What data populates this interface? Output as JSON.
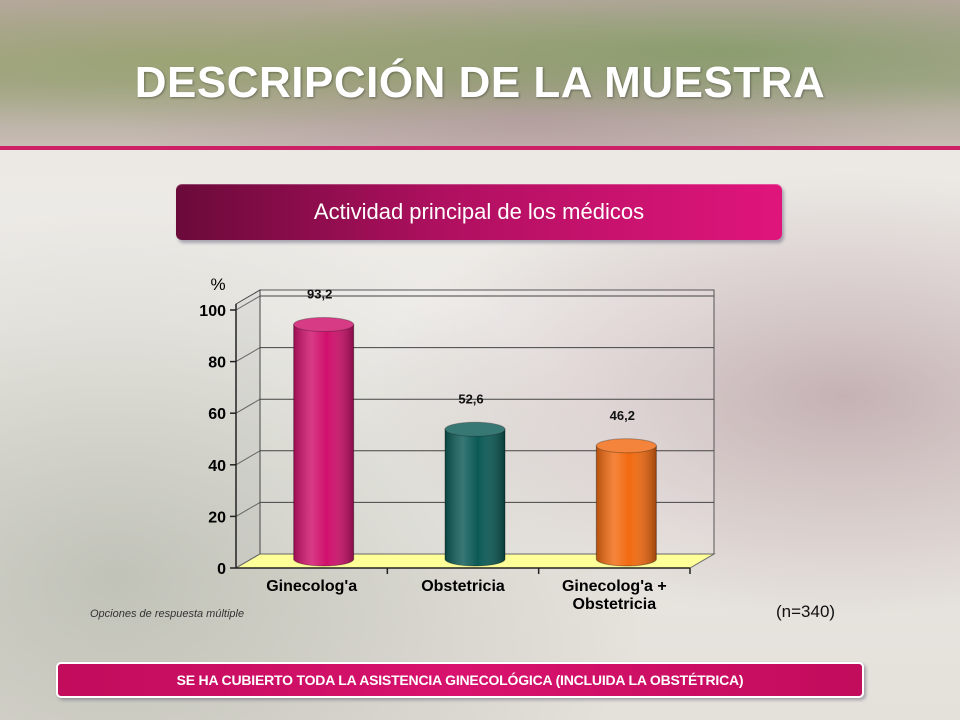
{
  "slide": {
    "title": "DESCRIPCIÓN DE LA MUESTRA",
    "banner": "Actividad principal de los médicos",
    "note": "Opciones de respuesta múltiple",
    "sample_size": "(n=340)",
    "footer": "SE HA CUBIERTO TODA LA ASISTENCIA GINECOLÓGICA (INCLUIDA LA OBSTÉTRICA)",
    "colors": {
      "accent": "#cc1f66",
      "banner_dark": "#6b0a3a",
      "banner_light": "#e0157c",
      "floor": "#ffff99"
    }
  },
  "chart_data": {
    "type": "bar",
    "ylabel": "%",
    "ylim": [
      0,
      100
    ],
    "yticks": [
      0,
      20,
      40,
      60,
      80,
      100
    ],
    "grid": true,
    "categories": [
      {
        "lines": [
          "Ginecolog'a"
        ]
      },
      {
        "lines": [
          "Obstetricia"
        ]
      },
      {
        "lines": [
          "Ginecolog'a +",
          "Obstetricia"
        ]
      }
    ],
    "values": [
      93.2,
      52.6,
      46.2
    ],
    "value_labels": [
      "93,2",
      "52,6",
      "46,2"
    ],
    "bar_colors": [
      "#d0106c",
      "#0b5a56",
      "#f26a10"
    ]
  }
}
